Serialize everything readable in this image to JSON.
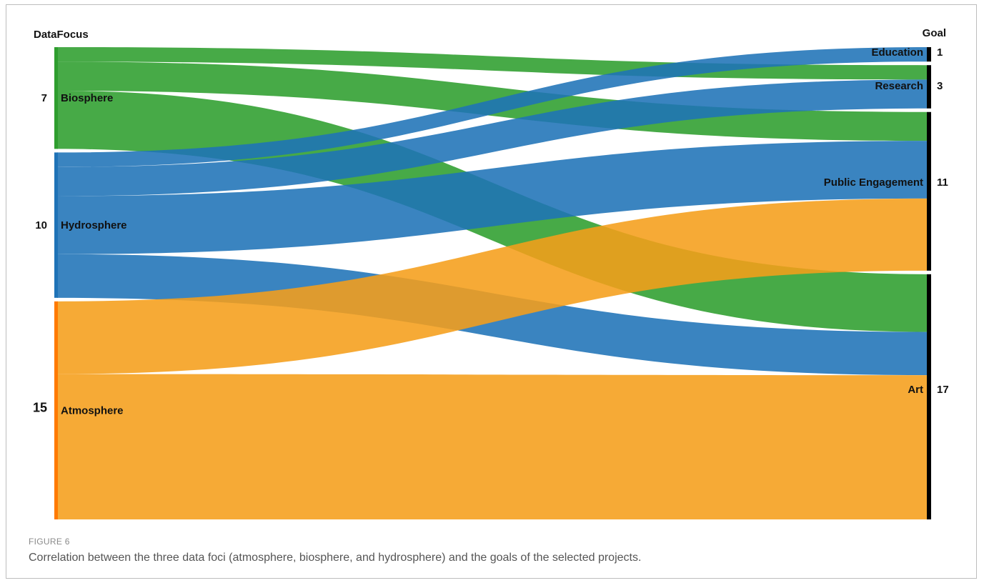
{
  "figure": {
    "label": "FIGURE 6",
    "caption": "Correlation between the three data foci (atmosphere, biosphere, and hydrosphere) and the goals of the selected projects."
  },
  "chart_data": {
    "type": "sankey",
    "source_header": "DataFocus",
    "target_header": "Goal",
    "sources": [
      {
        "name": "Biosphere",
        "value": 7,
        "color": "#2e9e2e"
      },
      {
        "name": "Hydrosphere",
        "value": 10,
        "color": "#1f73b7"
      },
      {
        "name": "Atmosphere",
        "value": 15,
        "color": "#f59e1a"
      }
    ],
    "targets": [
      {
        "name": "Education",
        "value": 1
      },
      {
        "name": "Research",
        "value": 3
      },
      {
        "name": "Public Engagement",
        "value": 11
      },
      {
        "name": "Art",
        "value": 17
      }
    ],
    "links": [
      {
        "source": "Biosphere",
        "target": "Research",
        "value": 1
      },
      {
        "source": "Biosphere",
        "target": "Public Engagement",
        "value": 2
      },
      {
        "source": "Biosphere",
        "target": "Art",
        "value": 4
      },
      {
        "source": "Hydrosphere",
        "target": "Education",
        "value": 1
      },
      {
        "source": "Hydrosphere",
        "target": "Research",
        "value": 2
      },
      {
        "source": "Hydrosphere",
        "target": "Public Engagement",
        "value": 4
      },
      {
        "source": "Hydrosphere",
        "target": "Art",
        "value": 3
      },
      {
        "source": "Atmosphere",
        "target": "Public Engagement",
        "value": 5
      },
      {
        "source": "Atmosphere",
        "target": "Art",
        "value": 10
      }
    ],
    "node_colors": {
      "source_bar": "#ff7a00",
      "target_bar": "#000000"
    },
    "link_opacity": 0.88
  }
}
